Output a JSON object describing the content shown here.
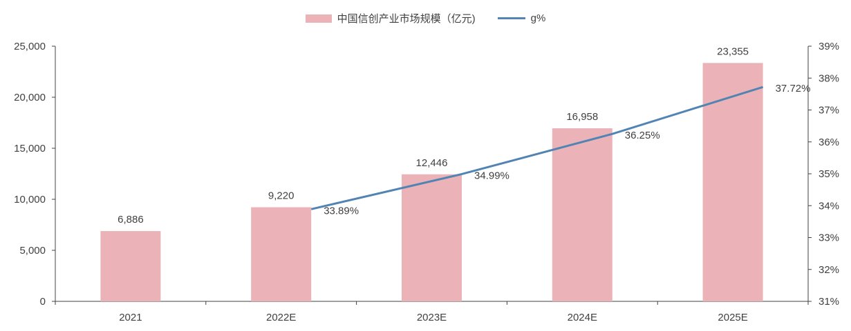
{
  "chart_data": {
    "type": "bar+line",
    "categories": [
      "2021",
      "2022E",
      "2023E",
      "2024E",
      "2025E"
    ],
    "series": [
      {
        "name": "中国信创产业市场规模（亿元)",
        "type": "bar",
        "axis": "left",
        "values": [
          6886,
          9220,
          12446,
          16958,
          23355
        ],
        "labels": [
          "6,886",
          "9,220",
          "12,446",
          "16,958",
          "23,355"
        ]
      },
      {
        "name": "g%",
        "type": "line",
        "axis": "right",
        "values": [
          null,
          33.89,
          34.99,
          36.25,
          37.72
        ],
        "labels": [
          "",
          "33.89%",
          "34.99%",
          "36.25%",
          "37.72%"
        ]
      }
    ],
    "y_left": {
      "min": 0,
      "max": 25000,
      "step": 5000,
      "ticks": [
        "0",
        "5,000",
        "10,000",
        "15,000",
        "20,000",
        "25,000"
      ]
    },
    "y_right": {
      "min": 31,
      "max": 39,
      "step": 1,
      "ticks": [
        "31%",
        "32%",
        "33%",
        "34%",
        "35%",
        "36%",
        "37%",
        "38%",
        "39%"
      ]
    },
    "legend_position": "top-center",
    "colors": {
      "bar": "#ebb3b8",
      "line": "#5183b3",
      "axis": "#404040"
    }
  },
  "legend": {
    "bar_label": "中国信创产业市场规模（亿元)",
    "line_label": "g%"
  }
}
